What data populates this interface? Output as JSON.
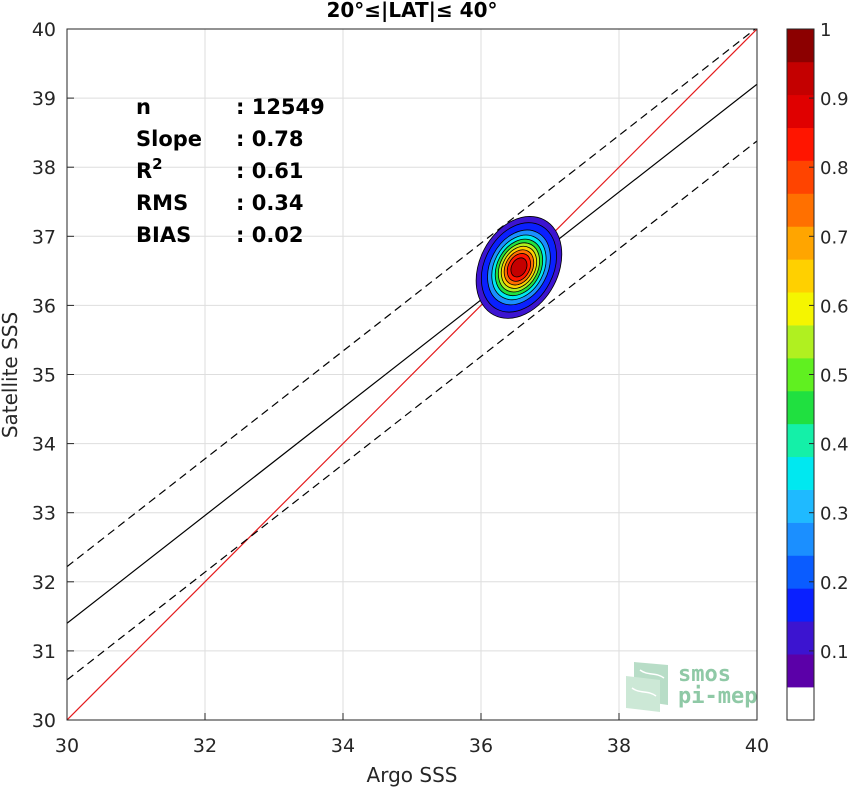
{
  "chart_data": {
    "type": "contour",
    "title": "20°≤|LAT|≤ 40°",
    "xlabel": "Argo SSS",
    "ylabel": "Satellite SSS",
    "xlim": [
      30,
      40
    ],
    "ylim": [
      30,
      40
    ],
    "xticks": [
      "30",
      "32",
      "34",
      "36",
      "38",
      "40"
    ],
    "yticks": [
      "30",
      "31",
      "32",
      "33",
      "34",
      "35",
      "36",
      "37",
      "38",
      "39",
      "40"
    ],
    "grid": true,
    "stats": [
      {
        "label": "n",
        "sep": ": ",
        "value": "12549"
      },
      {
        "label": "Slope",
        "sep": ": ",
        "value": "0.78"
      },
      {
        "label": "R",
        "sup": "2",
        "sep": ": ",
        "value": "0.61"
      },
      {
        "label": "RMS",
        "sep": ": ",
        "value": "0.34"
      },
      {
        "label": "BIAS",
        "sep": ": ",
        "value": "0.02"
      }
    ],
    "identity_line": {
      "color": "#e41a1c",
      "from": [
        30,
        30
      ],
      "to": [
        40,
        40
      ]
    },
    "regression_line": {
      "slope": 0.78,
      "intercept": 8.0,
      "color": "#000000"
    },
    "regression_band_offset": 0.82,
    "density_peak": {
      "x": 36.55,
      "y": 36.55
    },
    "density_levels": [
      0.05,
      0.1,
      0.2,
      0.3,
      0.4,
      0.5,
      0.6,
      0.7,
      0.8,
      0.9
    ],
    "colorbar": {
      "range": [
        0,
        1
      ],
      "ticks": [
        "0.1",
        "0.2",
        "0.3",
        "0.4",
        "0.5",
        "0.6",
        "0.7",
        "0.8",
        "0.9",
        "1"
      ],
      "colors": [
        "#ffffff",
        "#5b00a8",
        "#3c14d0",
        "#0a20ff",
        "#0a5cff",
        "#1b8fff",
        "#1fbaff",
        "#00e8f0",
        "#14f0a8",
        "#20e040",
        "#60f020",
        "#b0f020",
        "#f5f500",
        "#ffd000",
        "#ffa500",
        "#ff7000",
        "#ff4400",
        "#ff1500",
        "#e00000",
        "#c40000",
        "#8c0000"
      ]
    },
    "logo": {
      "line1": "smos",
      "line2": "pi-mep"
    }
  }
}
